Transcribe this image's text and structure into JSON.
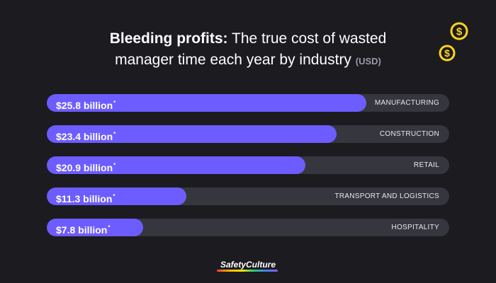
{
  "header": {
    "title_bold": "Bleeding profits:",
    "title_rest_line1": "The true cost of wasted",
    "title_line2": "manager time each year by industry",
    "title_unit": "(USD)"
  },
  "icons": {
    "coins": "dollar-coins-icon",
    "coin_color": "#ffd21f"
  },
  "colors": {
    "background": "#1b1b20",
    "bar_fill": "#6d5cff",
    "bar_track": "#36363e"
  },
  "chart_data": {
    "type": "bar",
    "orientation": "horizontal",
    "title": "Bleeding profits: The true cost of wasted manager time each year by industry (USD)",
    "categories": [
      "MANUFACTURING",
      "CONSTRUCTION",
      "RETAIL",
      "TRANSPORT AND LOGISTICS",
      "HOSPITALITY"
    ],
    "values": [
      25.8,
      23.4,
      20.9,
      11.3,
      7.8
    ],
    "value_labels": [
      "$25.8 billion",
      "$23.4 billion",
      "$20.9 billion",
      "$11.3 billion",
      "$7.8 billion"
    ],
    "footnote_marker": "*",
    "unit": "billion USD",
    "xlim": [
      0,
      32.5
    ],
    "grid": false,
    "legend": "none"
  },
  "footer": {
    "brand": "SafetyCulture"
  }
}
